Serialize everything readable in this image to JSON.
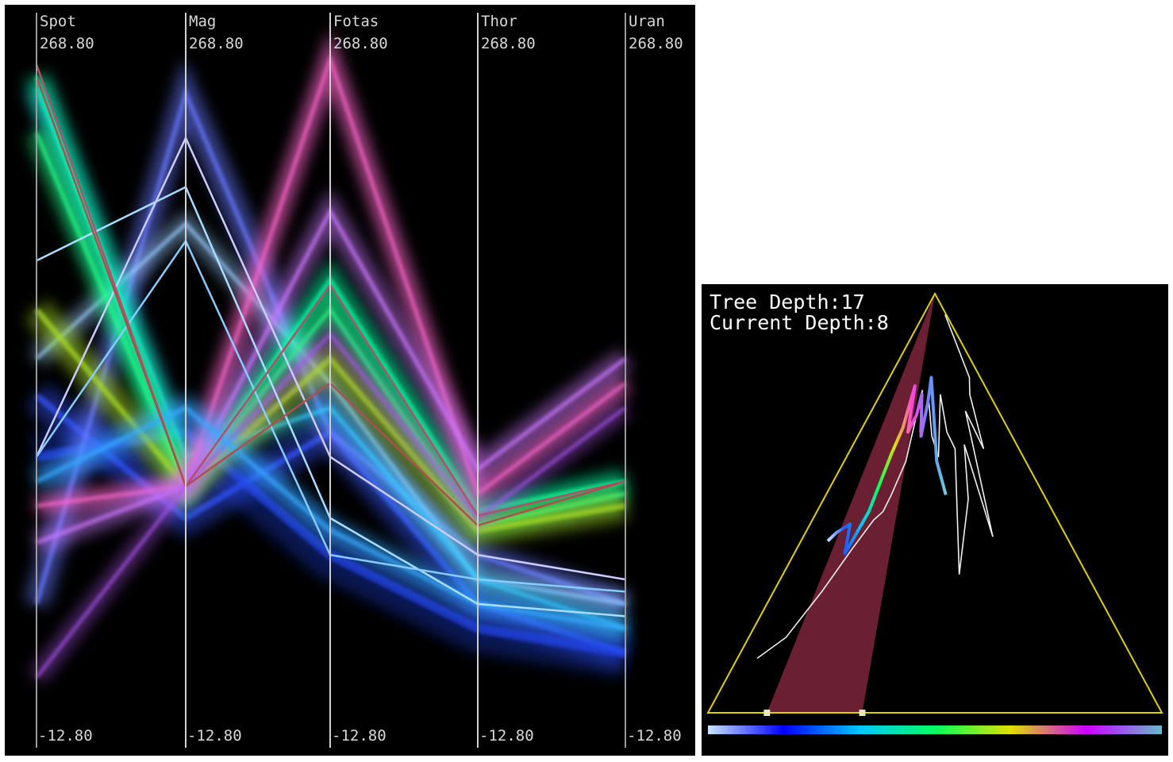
{
  "chart_data": [
    {
      "type": "parallel-coordinates",
      "axes": [
        {
          "name": "Spot",
          "max_label": "268.80",
          "min_label": "-12.80"
        },
        {
          "name": "Mag",
          "max_label": "268.80",
          "min_label": "-12.80"
        },
        {
          "name": "Fotas",
          "max_label": "268.80",
          "min_label": "-12.80"
        },
        {
          "name": "Thor",
          "max_label": "268.80",
          "min_label": "-12.80"
        },
        {
          "name": "Uran",
          "max_label": "268.80",
          "min_label": "-12.80"
        }
      ],
      "range": [
        -12.8,
        268.8
      ],
      "bands": [
        {
          "color": "#3355ff",
          "width": 40,
          "opacity": 0.45,
          "values": [
            125,
            75,
            110,
            40,
            20
          ]
        },
        {
          "color": "#2244ee",
          "width": 60,
          "opacity": 0.35,
          "values": [
            100,
            110,
            60,
            30,
            20
          ]
        },
        {
          "color": "#6677ff",
          "width": 30,
          "opacity": 0.55,
          "values": [
            40,
            248,
            110,
            60,
            40
          ]
        },
        {
          "color": "#99ccff",
          "width": 24,
          "opacity": 0.5,
          "values": [
            140,
            195,
            130,
            50,
            40
          ]
        },
        {
          "color": "#33ccff",
          "width": 26,
          "opacity": 0.5,
          "values": [
            250,
            100,
            120,
            50,
            30
          ]
        },
        {
          "color": "#00ffaa",
          "width": 30,
          "opacity": 0.55,
          "values": [
            255,
            88,
            172,
            78,
            90
          ]
        },
        {
          "color": "#22ff88",
          "width": 26,
          "opacity": 0.55,
          "values": [
            232,
            88,
            160,
            72,
            85
          ]
        },
        {
          "color": "#aadd22",
          "width": 36,
          "opacity": 0.5,
          "values": [
            160,
            88,
            140,
            70,
            80
          ]
        },
        {
          "color": "#ff66cc",
          "width": 24,
          "opacity": 0.65,
          "values": [
            80,
            88,
            262,
            85,
            130
          ]
        },
        {
          "color": "#cc77ff",
          "width": 28,
          "opacity": 0.5,
          "values": [
            65,
            88,
            200,
            95,
            140
          ]
        },
        {
          "color": "#aa55ee",
          "width": 22,
          "opacity": 0.45,
          "values": [
            10,
            88,
            150,
            75,
            120
          ]
        },
        {
          "color": "#33aaff",
          "width": 30,
          "opacity": 0.55,
          "values": [
            90,
            120,
            70,
            40,
            30
          ]
        }
      ],
      "lines": [
        {
          "color": "#aaddff",
          "values": [
            180,
            210,
            75,
            40,
            35
          ]
        },
        {
          "color": "#ccccff",
          "values": [
            100,
            230,
            100,
            60,
            50
          ]
        },
        {
          "color": "#88ccff",
          "values": [
            100,
            188,
            60,
            50,
            45
          ]
        },
        {
          "color": "#b0506a",
          "values": [
            260,
            88,
            170,
            76,
            90
          ]
        },
        {
          "color": "#aa5050",
          "values": [
            255,
            88,
            130,
            72,
            90
          ]
        }
      ]
    },
    {
      "type": "line",
      "texts": {
        "tree_depth": "Tree Depth:17",
        "current_depth": "Current Depth:8"
      },
      "tree_depth": 17,
      "current_depth": 8,
      "highlighted_sector": [
        0.13,
        0.34
      ],
      "colorbar": [
        "#c8e6ff",
        "#0000ff",
        "#00c8ff",
        "#00ff60",
        "#e0e000",
        "#cc00ff",
        "#66bbcc"
      ],
      "white_path": [
        [
          0.05,
          0.87
        ],
        [
          0.1,
          0.82
        ],
        [
          0.15,
          0.71
        ],
        [
          0.2,
          0.61
        ],
        [
          0.25,
          0.54
        ],
        [
          0.28,
          0.52
        ],
        [
          0.3,
          0.48
        ],
        [
          0.34,
          0.4
        ],
        [
          0.38,
          0.23
        ],
        [
          0.4,
          0.33
        ],
        [
          0.45,
          0.26
        ],
        [
          0.48,
          0.34
        ],
        [
          0.52,
          0.39
        ],
        [
          0.55,
          0.24
        ],
        [
          0.58,
          0.33
        ],
        [
          0.62,
          0.37
        ],
        [
          0.58,
          0.67
        ],
        [
          0.65,
          0.49
        ],
        [
          0.68,
          0.36
        ],
        [
          0.72,
          0.58
        ],
        [
          0.74,
          0.28
        ],
        [
          0.79,
          0.37
        ],
        [
          0.82,
          0.24
        ],
        [
          0.88,
          0.2
        ],
        [
          0.95,
          0.05
        ]
      ],
      "color_path": [
        [
          0.1,
          0.41
        ],
        [
          0.12,
          0.43
        ],
        [
          0.16,
          0.45
        ],
        [
          0.18,
          0.38
        ],
        [
          0.22,
          0.48
        ],
        [
          0.25,
          0.62
        ],
        [
          0.28,
          0.68
        ],
        [
          0.3,
          0.78
        ],
        [
          0.32,
          0.67
        ],
        [
          0.36,
          0.71
        ],
        [
          0.38,
          0.76
        ],
        [
          0.41,
          0.66
        ],
        [
          0.44,
          0.74
        ],
        [
          0.46,
          0.8
        ],
        [
          0.51,
          0.6
        ],
        [
          0.55,
          0.52
        ]
      ]
    }
  ]
}
